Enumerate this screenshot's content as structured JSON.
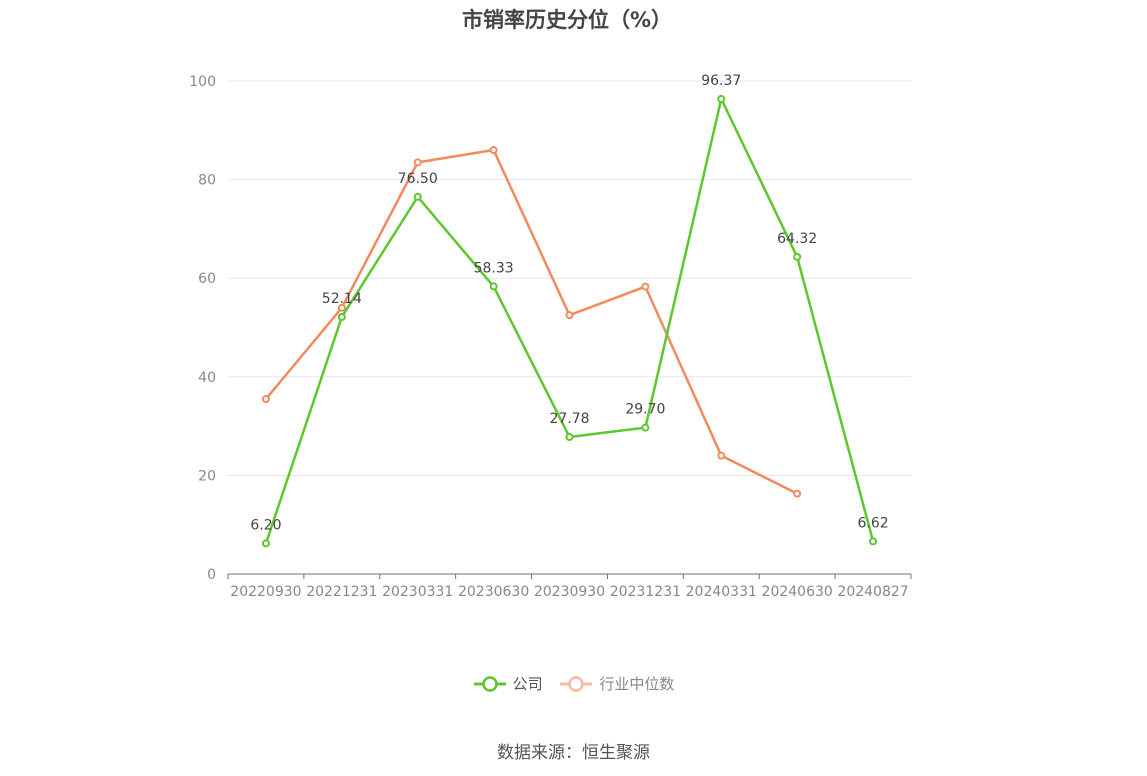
{
  "chart_data": {
    "type": "line",
    "title": "市销率历史分位（%）",
    "categories": [
      "20220930",
      "20221231",
      "20230331",
      "20230630",
      "20230930",
      "20231231",
      "20240331",
      "20240630",
      "20240827"
    ],
    "series": [
      {
        "name": "公司",
        "color": "#5cc72e",
        "values": [
          6.2,
          52.14,
          76.5,
          58.33,
          27.78,
          29.7,
          96.37,
          64.32,
          6.62
        ],
        "show_labels": true
      },
      {
        "name": "行业中位数",
        "color": "#f28a5c",
        "values": [
          35.5,
          54.0,
          83.5,
          86.0,
          52.5,
          58.3,
          24.0,
          16.3,
          null
        ],
        "show_labels": false
      }
    ],
    "ylim": [
      0,
      100
    ],
    "yticks": [
      0,
      20,
      40,
      60,
      80,
      100
    ],
    "grid": true,
    "legend_position": "bottom"
  },
  "legend": {
    "company": "公司",
    "industry": "行业中位数"
  },
  "source": "数据来源：恒生聚源"
}
